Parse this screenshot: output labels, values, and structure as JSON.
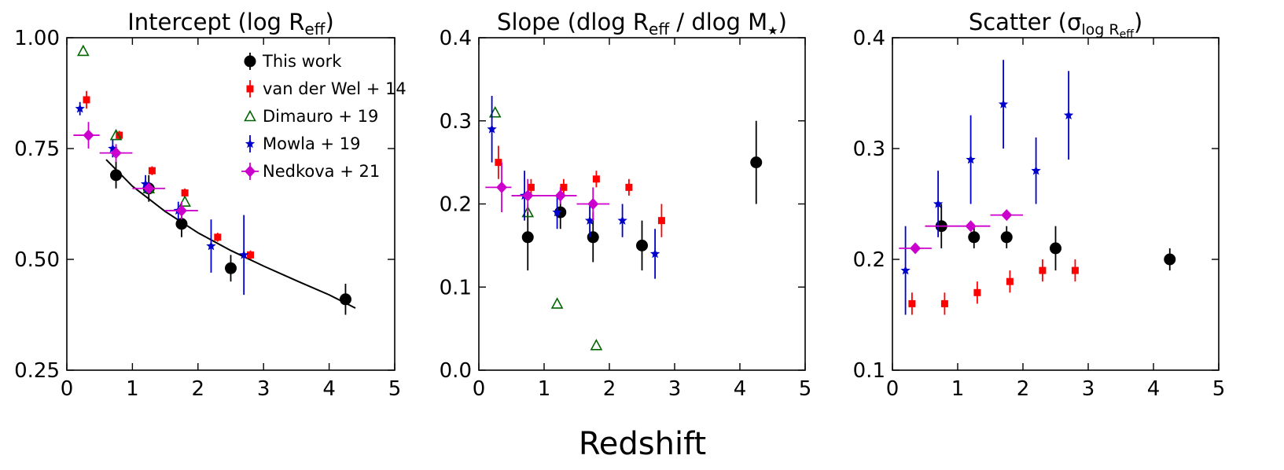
{
  "chart_data": [
    {
      "type": "scatter",
      "title": {
        "main": "Intercept (log R",
        "sub": "eff",
        "tail": ")"
      },
      "xlabel": "",
      "ylabel": "",
      "xlim": [
        0,
        5
      ],
      "ylim": [
        0.25,
        1.0
      ],
      "xticks": [
        0,
        1,
        2,
        3,
        4,
        5
      ],
      "xtick_labels": [
        "0",
        "1",
        "2",
        "3",
        "4",
        "5"
      ],
      "yticks": [
        0.25,
        0.5,
        0.75,
        1.0
      ],
      "ytick_labels": [
        "0.25",
        "0.50",
        "0.75",
        "1.00"
      ],
      "legend": {
        "placement": "top-right"
      },
      "fit_curve": {
        "label": "fit",
        "x": [
          0.6,
          1.0,
          1.5,
          2.0,
          2.5,
          3.0,
          3.5,
          4.0,
          4.4
        ],
        "y": [
          0.725,
          0.665,
          0.608,
          0.56,
          0.52,
          0.485,
          0.452,
          0.42,
          0.39
        ]
      },
      "series": [
        {
          "name": "This work",
          "marker": "circle",
          "color": "#000000",
          "points": [
            {
              "x": 0.75,
              "y": 0.69,
              "yerr": 0.03
            },
            {
              "x": 1.25,
              "y": 0.66,
              "yerr": 0.03
            },
            {
              "x": 1.75,
              "y": 0.58,
              "yerr": 0.03
            },
            {
              "x": 2.5,
              "y": 0.48,
              "yerr": 0.03
            },
            {
              "x": 4.25,
              "y": 0.41,
              "yerr": 0.035
            }
          ]
        },
        {
          "name": "van der Wel + 14",
          "marker": "square",
          "color": "#ff0000",
          "points": [
            {
              "x": 0.3,
              "y": 0.86,
              "yerr": 0.02
            },
            {
              "x": 0.8,
              "y": 0.78,
              "yerr": 0.01
            },
            {
              "x": 1.3,
              "y": 0.7,
              "yerr": 0.01
            },
            {
              "x": 1.8,
              "y": 0.65,
              "yerr": 0.01
            },
            {
              "x": 2.3,
              "y": 0.55,
              "yerr": 0.01
            },
            {
              "x": 2.8,
              "y": 0.51,
              "yerr": 0.01
            }
          ]
        },
        {
          "name": "Dimauro + 19",
          "marker": "triangle",
          "color": "#006400",
          "points": [
            {
              "x": 0.25,
              "y": 0.97
            },
            {
              "x": 0.75,
              "y": 0.78
            },
            {
              "x": 1.25,
              "y": 0.66
            },
            {
              "x": 1.8,
              "y": 0.63
            }
          ]
        },
        {
          "name": "Mowla + 19",
          "marker": "star",
          "color": "#0000cc",
          "points": [
            {
              "x": 0.2,
              "y": 0.84,
              "yerr": 0.015
            },
            {
              "x": 0.7,
              "y": 0.75,
              "yerr": 0.02
            },
            {
              "x": 1.2,
              "y": 0.67,
              "yerr": 0.02
            },
            {
              "x": 1.7,
              "y": 0.61,
              "yerr": 0.02
            },
            {
              "x": 2.2,
              "y": 0.53,
              "yerr": 0.06
            },
            {
              "x": 2.7,
              "y": 0.51,
              "yerr": 0.09
            }
          ]
        },
        {
          "name": "Nedkova + 21",
          "marker": "diamond",
          "color": "#cc00cc",
          "points": [
            {
              "x": 0.33,
              "y": 0.78,
              "xlo": 0.1,
              "xhi": 0.5,
              "yerr": 0.03
            },
            {
              "x": 0.75,
              "y": 0.74,
              "xlo": 0.5,
              "xhi": 1.0,
              "yerr": 0.02
            },
            {
              "x": 1.25,
              "y": 0.66,
              "xlo": 1.0,
              "xhi": 1.5
            },
            {
              "x": 1.75,
              "y": 0.61,
              "xlo": 1.5,
              "xhi": 2.0,
              "yerr": 0.02
            }
          ]
        }
      ]
    },
    {
      "type": "scatter",
      "title": {
        "main": "Slope (dlog R",
        "sub": "eff",
        "tail": " / dlog M",
        "star": "★",
        "end": ")"
      },
      "xlabel": "",
      "ylabel": "",
      "xlim": [
        0,
        5
      ],
      "ylim": [
        0.0,
        0.4
      ],
      "xticks": [
        0,
        1,
        2,
        3,
        4,
        5
      ],
      "xtick_labels": [
        "0",
        "1",
        "2",
        "3",
        "4",
        "5"
      ],
      "yticks": [
        0.0,
        0.1,
        0.2,
        0.3,
        0.4
      ],
      "ytick_labels": [
        "0.0",
        "0.1",
        "0.2",
        "0.3",
        "0.4"
      ],
      "series": [
        {
          "name": "This work",
          "marker": "circle",
          "color": "#000000",
          "points": [
            {
              "x": 0.75,
              "y": 0.16,
              "yerr": 0.04
            },
            {
              "x": 1.25,
              "y": 0.19,
              "yerr": 0.02
            },
            {
              "x": 1.75,
              "y": 0.16,
              "yerr": 0.03
            },
            {
              "x": 2.5,
              "y": 0.15,
              "yerr": 0.03
            },
            {
              "x": 4.25,
              "y": 0.25,
              "yerr": 0.05
            }
          ]
        },
        {
          "name": "van der Wel + 14",
          "marker": "square",
          "color": "#ff0000",
          "points": [
            {
              "x": 0.3,
              "y": 0.25,
              "yerr": 0.02
            },
            {
              "x": 0.8,
              "y": 0.22,
              "yerr": 0.01
            },
            {
              "x": 1.3,
              "y": 0.22,
              "yerr": 0.01
            },
            {
              "x": 1.8,
              "y": 0.23,
              "yerr": 0.01
            },
            {
              "x": 2.3,
              "y": 0.22,
              "yerr": 0.01
            },
            {
              "x": 2.8,
              "y": 0.18,
              "yerr": 0.02
            }
          ]
        },
        {
          "name": "Dimauro + 19",
          "marker": "triangle",
          "color": "#006400",
          "points": [
            {
              "x": 0.25,
              "y": 0.31
            },
            {
              "x": 0.75,
              "y": 0.19
            },
            {
              "x": 1.2,
              "y": 0.08
            },
            {
              "x": 1.8,
              "y": 0.03
            }
          ]
        },
        {
          "name": "Mowla + 19",
          "marker": "star",
          "color": "#0000cc",
          "points": [
            {
              "x": 0.2,
              "y": 0.29,
              "yerr": 0.04
            },
            {
              "x": 0.7,
              "y": 0.21,
              "yerr": 0.03
            },
            {
              "x": 1.2,
              "y": 0.19,
              "yerr": 0.02
            },
            {
              "x": 1.7,
              "y": 0.18,
              "yerr": 0.02
            },
            {
              "x": 2.2,
              "y": 0.18,
              "yerr": 0.02
            },
            {
              "x": 2.7,
              "y": 0.14,
              "yerr": 0.03
            }
          ]
        },
        {
          "name": "Nedkova + 21",
          "marker": "diamond",
          "color": "#cc00cc",
          "points": [
            {
              "x": 0.35,
              "y": 0.22,
              "xlo": 0.1,
              "xhi": 0.5,
              "yerr": 0.03
            },
            {
              "x": 0.75,
              "y": 0.21,
              "xlo": 0.5,
              "xhi": 1.0,
              "yerr": 0.02
            },
            {
              "x": 1.25,
              "y": 0.21,
              "xlo": 1.0,
              "xhi": 1.5,
              "yerr": 0.01
            },
            {
              "x": 1.75,
              "y": 0.2,
              "xlo": 1.5,
              "xhi": 2.0,
              "yerr": 0.02
            }
          ]
        }
      ]
    },
    {
      "type": "scatter",
      "title": {
        "main": "Scatter (σ",
        "sub": "log R",
        "subsub": "eff",
        "end": ")"
      },
      "xlabel": "",
      "ylabel": "",
      "xlim": [
        0,
        5
      ],
      "ylim": [
        0.1,
        0.4
      ],
      "xticks": [
        0,
        1,
        2,
        3,
        4,
        5
      ],
      "xtick_labels": [
        "0",
        "1",
        "2",
        "3",
        "4",
        "5"
      ],
      "yticks": [
        0.1,
        0.2,
        0.3,
        0.4
      ],
      "ytick_labels": [
        "0.1",
        "0.2",
        "0.3",
        "0.4"
      ],
      "series": [
        {
          "name": "This work",
          "marker": "circle",
          "color": "#000000",
          "points": [
            {
              "x": 0.75,
              "y": 0.23,
              "yerr": 0.02
            },
            {
              "x": 1.25,
              "y": 0.22,
              "yerr": 0.01
            },
            {
              "x": 1.75,
              "y": 0.22,
              "yerr": 0.01
            },
            {
              "x": 2.5,
              "y": 0.21,
              "yerr": 0.02
            },
            {
              "x": 4.25,
              "y": 0.2,
              "yerr": 0.01
            }
          ]
        },
        {
          "name": "van der Wel + 14",
          "marker": "square",
          "color": "#ff0000",
          "points": [
            {
              "x": 0.3,
              "y": 0.16,
              "yerr": 0.01
            },
            {
              "x": 0.8,
              "y": 0.16,
              "yerr": 0.01
            },
            {
              "x": 1.3,
              "y": 0.17,
              "yerr": 0.01
            },
            {
              "x": 1.8,
              "y": 0.18,
              "yerr": 0.01
            },
            {
              "x": 2.3,
              "y": 0.19,
              "yerr": 0.01
            },
            {
              "x": 2.8,
              "y": 0.19,
              "yerr": 0.01
            }
          ]
        },
        {
          "name": "Mowla + 19",
          "marker": "star",
          "color": "#0000cc",
          "points": [
            {
              "x": 0.2,
              "y": 0.19,
              "yerr": 0.04
            },
            {
              "x": 0.7,
              "y": 0.25,
              "yerr": 0.03
            },
            {
              "x": 1.2,
              "y": 0.29,
              "yerr": 0.04
            },
            {
              "x": 1.7,
              "y": 0.34,
              "yerr": 0.04
            },
            {
              "x": 2.2,
              "y": 0.28,
              "yerr": 0.03
            },
            {
              "x": 2.7,
              "y": 0.33,
              "yerr": 0.04
            }
          ]
        },
        {
          "name": "Nedkova + 21",
          "marker": "diamond",
          "color": "#cc00cc",
          "points": [
            {
              "x": 0.35,
              "y": 0.21,
              "xlo": 0.1,
              "xhi": 0.6
            },
            {
              "x": 1.2,
              "y": 0.23,
              "xlo": 0.5,
              "xhi": 1.5
            },
            {
              "x": 1.75,
              "y": 0.24,
              "xlo": 1.5,
              "xhi": 2.0
            }
          ]
        }
      ]
    }
  ],
  "figure": {
    "shared_xlabel": "Redshift",
    "legend_entries": [
      "This work",
      "van der Wel + 14",
      "Dimauro + 19",
      "Mowla + 19",
      "Nedkova + 21"
    ]
  }
}
